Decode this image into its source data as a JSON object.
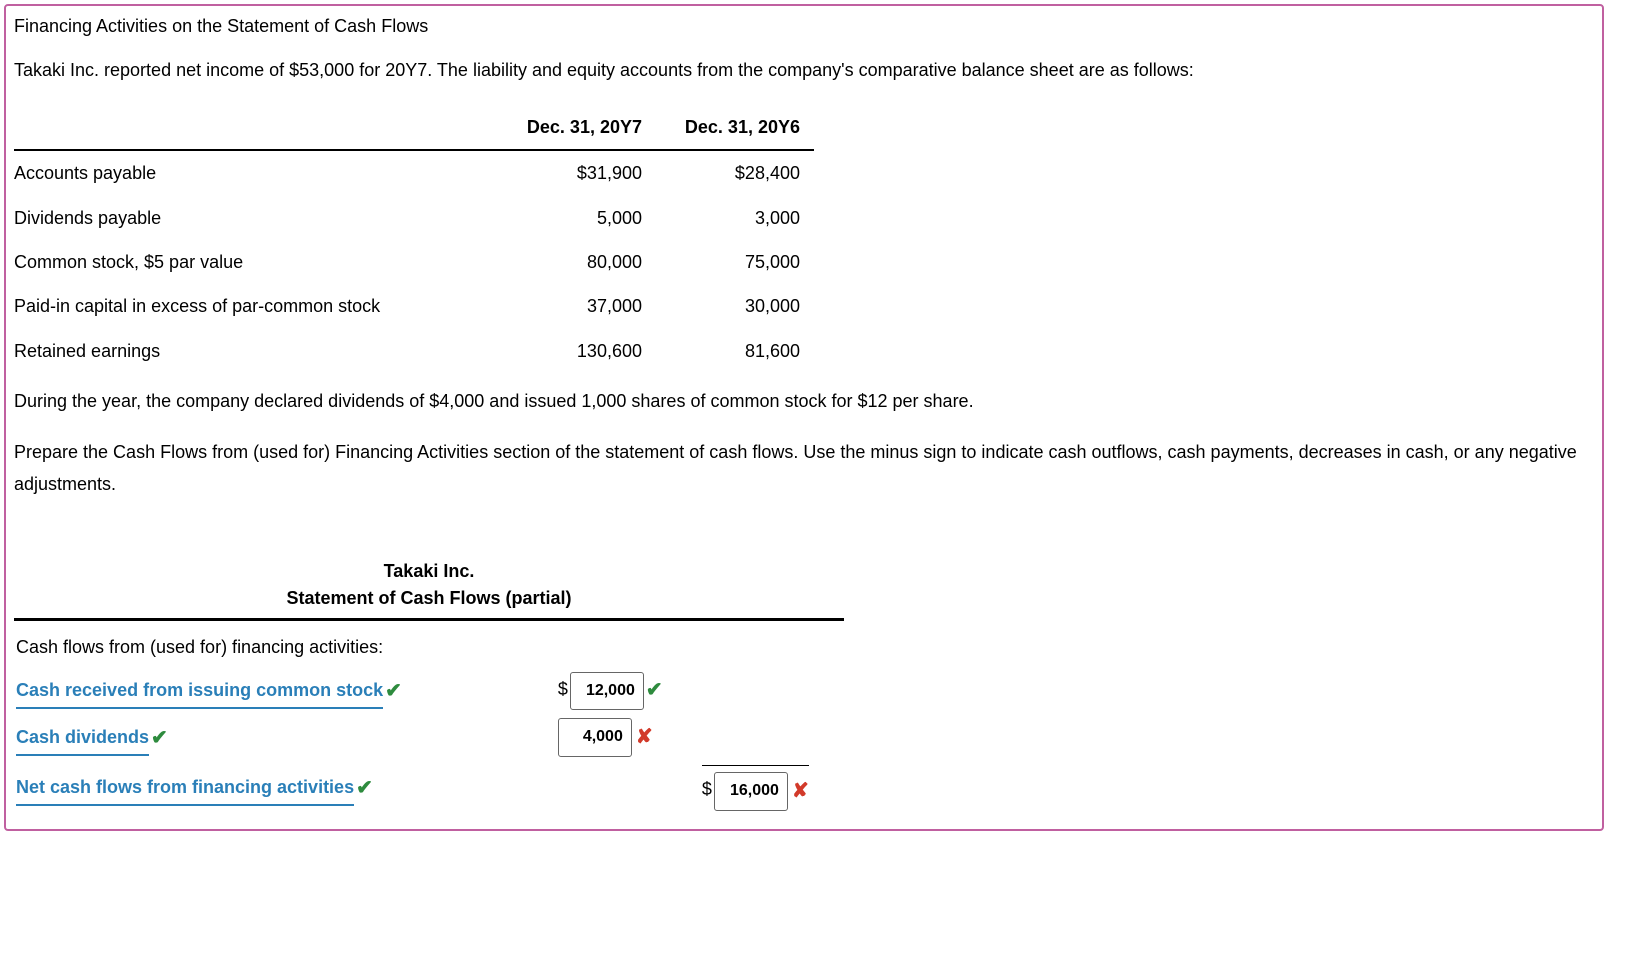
{
  "title": "Financing Activities on the Statement of Cash Flows",
  "intro_paragraph": "Takaki Inc. reported net income of $53,000 for 20Y7. The liability and equity accounts from the company's comparative balance sheet are as follows:",
  "balance_table": {
    "columns": [
      "Dec. 31, 20Y7",
      "Dec. 31, 20Y6"
    ],
    "rows": [
      {
        "label": "Accounts payable",
        "y7": "$31,900",
        "y6": "$28,400"
      },
      {
        "label": "Dividends payable",
        "y7": "5,000",
        "y6": "3,000"
      },
      {
        "label": "Common stock, $5 par value",
        "y7": "80,000",
        "y6": "75,000"
      },
      {
        "label": "Paid-in capital in excess of par-common stock",
        "y7": "37,000",
        "y6": "30,000"
      },
      {
        "label": "Retained earnings",
        "y7": "130,600",
        "y6": "81,600"
      }
    ]
  },
  "mid_paragraph": "During the year, the company declared dividends of $4,000 and issued 1,000 shares of common stock for $12 per share.",
  "instructions_paragraph": "Prepare the Cash Flows from (used for) Financing Activities section of the statement of cash flows. Use the minus sign to indicate cash outflows, cash payments, decreases in cash, or any negative adjustments.",
  "cashflow": {
    "company": "Takaki Inc.",
    "statement_title": "Statement of Cash Flows (partial)",
    "section_heading": "Cash flows from (used for) financing activities:",
    "rows": [
      {
        "label": "Cash received from issuing common stock",
        "label_correct": true,
        "show_dollar": true,
        "value": "12,000",
        "value_correct": true,
        "col": 1
      },
      {
        "label": "Cash dividends",
        "label_correct": true,
        "show_dollar": false,
        "value": "4,000",
        "value_correct": false,
        "col": 1
      },
      {
        "label": "Net cash flows from financing activities",
        "label_correct": true,
        "show_dollar": true,
        "value": "16,000",
        "value_correct": false,
        "col": 2
      }
    ]
  },
  "colors": {
    "link_blue": "#2a7fb8",
    "correct_green": "#2e8b3e",
    "wrong_red": "#d23a2a",
    "frame_pink": "#c060a0"
  }
}
